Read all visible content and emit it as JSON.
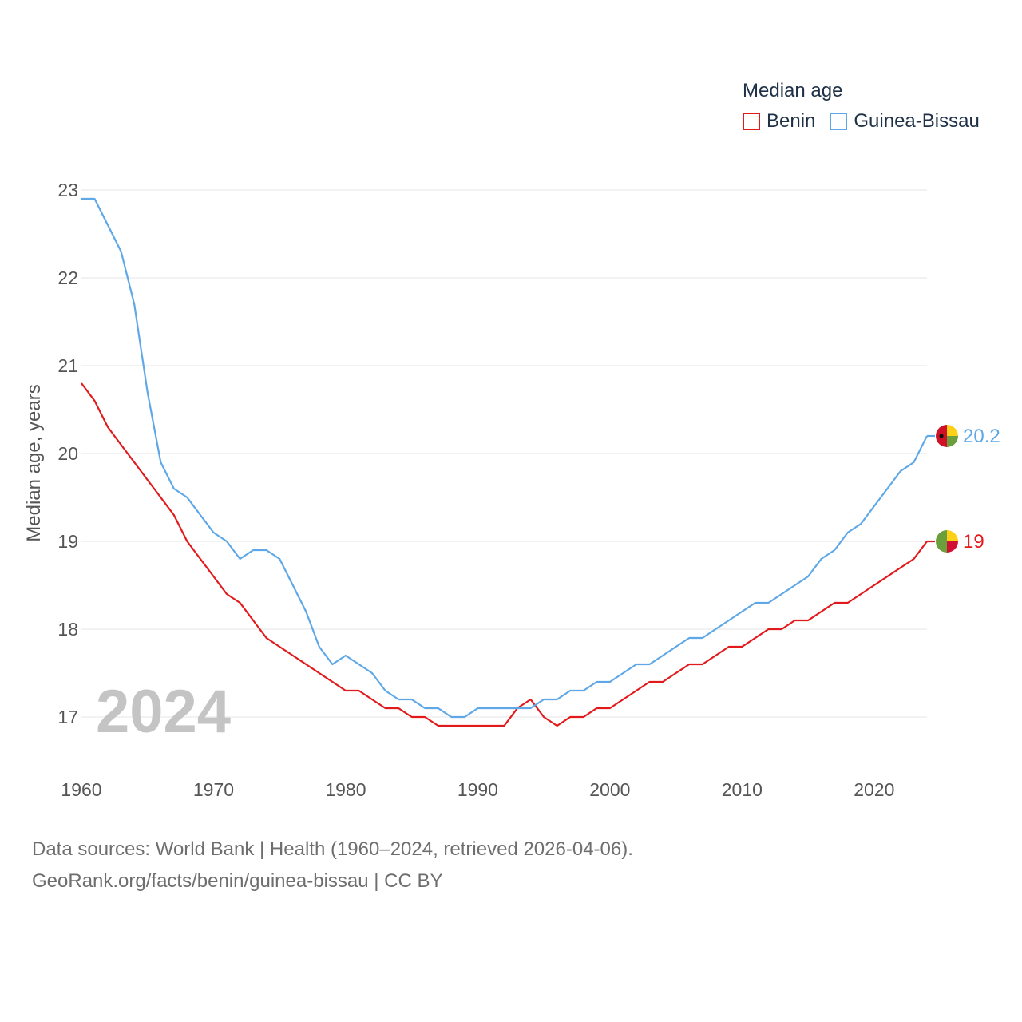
{
  "legend": {
    "title": "Median age",
    "items": [
      {
        "label": "Benin",
        "color": "#e31a1c"
      },
      {
        "label": "Guinea-Bissau",
        "color": "#5fa8e8"
      }
    ]
  },
  "year_watermark": "2024",
  "footer": {
    "line1": "Data sources: World Bank | Health (1960–2024, retrieved 2026-04-06).",
    "line2": "GeoRank.org/facts/benin/guinea-bissau | CC BY"
  },
  "chart_data": {
    "type": "line",
    "title": "Median age",
    "xlabel": "",
    "ylabel": "Median age, years",
    "xlim": [
      1960,
      2024
    ],
    "ylim": [
      16.5,
      23
    ],
    "x_ticks": [
      1960,
      1970,
      1980,
      1990,
      2000,
      2010,
      2020
    ],
    "y_ticks": [
      17,
      18,
      19,
      20,
      21,
      22,
      23
    ],
    "grid": true,
    "legend_position": "top-right",
    "x": [
      1960,
      1961,
      1962,
      1963,
      1964,
      1965,
      1966,
      1967,
      1968,
      1969,
      1970,
      1971,
      1972,
      1973,
      1974,
      1975,
      1976,
      1977,
      1978,
      1979,
      1980,
      1981,
      1982,
      1983,
      1984,
      1985,
      1986,
      1987,
      1988,
      1989,
      1990,
      1991,
      1992,
      1993,
      1994,
      1995,
      1996,
      1997,
      1998,
      1999,
      2000,
      2001,
      2002,
      2003,
      2004,
      2005,
      2006,
      2007,
      2008,
      2009,
      2010,
      2011,
      2012,
      2013,
      2014,
      2015,
      2016,
      2017,
      2018,
      2019,
      2020,
      2021,
      2022,
      2023,
      2024
    ],
    "series": [
      {
        "name": "Benin",
        "color": "#e31a1c",
        "end_label": "19",
        "values": [
          20.8,
          20.6,
          20.3,
          20.1,
          19.9,
          19.7,
          19.5,
          19.3,
          19.0,
          18.8,
          18.6,
          18.4,
          18.3,
          18.1,
          17.9,
          17.8,
          17.7,
          17.6,
          17.5,
          17.4,
          17.3,
          17.3,
          17.2,
          17.1,
          17.1,
          17.0,
          17.0,
          16.9,
          16.9,
          16.9,
          16.9,
          16.9,
          16.9,
          17.1,
          17.2,
          17.0,
          16.9,
          17.0,
          17.0,
          17.1,
          17.1,
          17.2,
          17.3,
          17.4,
          17.4,
          17.5,
          17.6,
          17.6,
          17.7,
          17.8,
          17.8,
          17.9,
          18.0,
          18.0,
          18.1,
          18.1,
          18.2,
          18.3,
          18.3,
          18.4,
          18.5,
          18.6,
          18.7,
          18.8,
          19.0
        ]
      },
      {
        "name": "Guinea-Bissau",
        "color": "#5fa8e8",
        "end_label": "20.2",
        "values": [
          22.9,
          22.9,
          22.6,
          22.3,
          21.7,
          20.7,
          19.9,
          19.6,
          19.5,
          19.3,
          19.1,
          19.0,
          18.8,
          18.9,
          18.9,
          18.8,
          18.5,
          18.2,
          17.8,
          17.6,
          17.7,
          17.6,
          17.5,
          17.3,
          17.2,
          17.2,
          17.1,
          17.1,
          17.0,
          17.0,
          17.1,
          17.1,
          17.1,
          17.1,
          17.1,
          17.2,
          17.2,
          17.3,
          17.3,
          17.4,
          17.4,
          17.5,
          17.6,
          17.6,
          17.7,
          17.8,
          17.9,
          17.9,
          18.0,
          18.1,
          18.2,
          18.3,
          18.3,
          18.4,
          18.5,
          18.6,
          18.8,
          18.9,
          19.1,
          19.2,
          19.4,
          19.6,
          19.8,
          19.9,
          20.2
        ]
      }
    ]
  }
}
